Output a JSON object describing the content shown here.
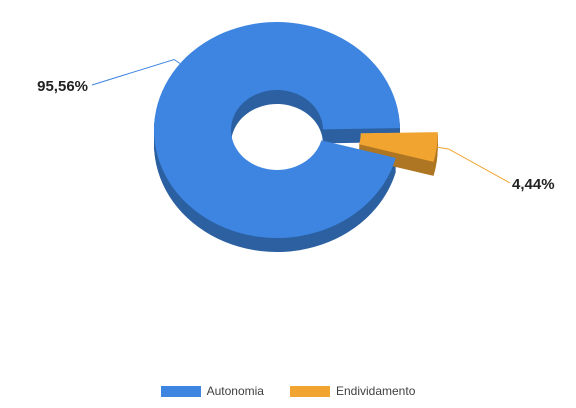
{
  "chart_data": {
    "type": "pie",
    "style": "3d-donut",
    "title": "",
    "categories": [
      "Autonomia",
      "Endividamento"
    ],
    "values": [
      95.56,
      4.44
    ],
    "data_labels": [
      "95,56%",
      "4,44%"
    ],
    "colors": [
      "#3d85e0",
      "#f2a431"
    ],
    "exploded": [
      false,
      true
    ],
    "legend": {
      "placement": "bottom",
      "entries": [
        "Autonomia",
        "Endividamento"
      ]
    }
  }
}
